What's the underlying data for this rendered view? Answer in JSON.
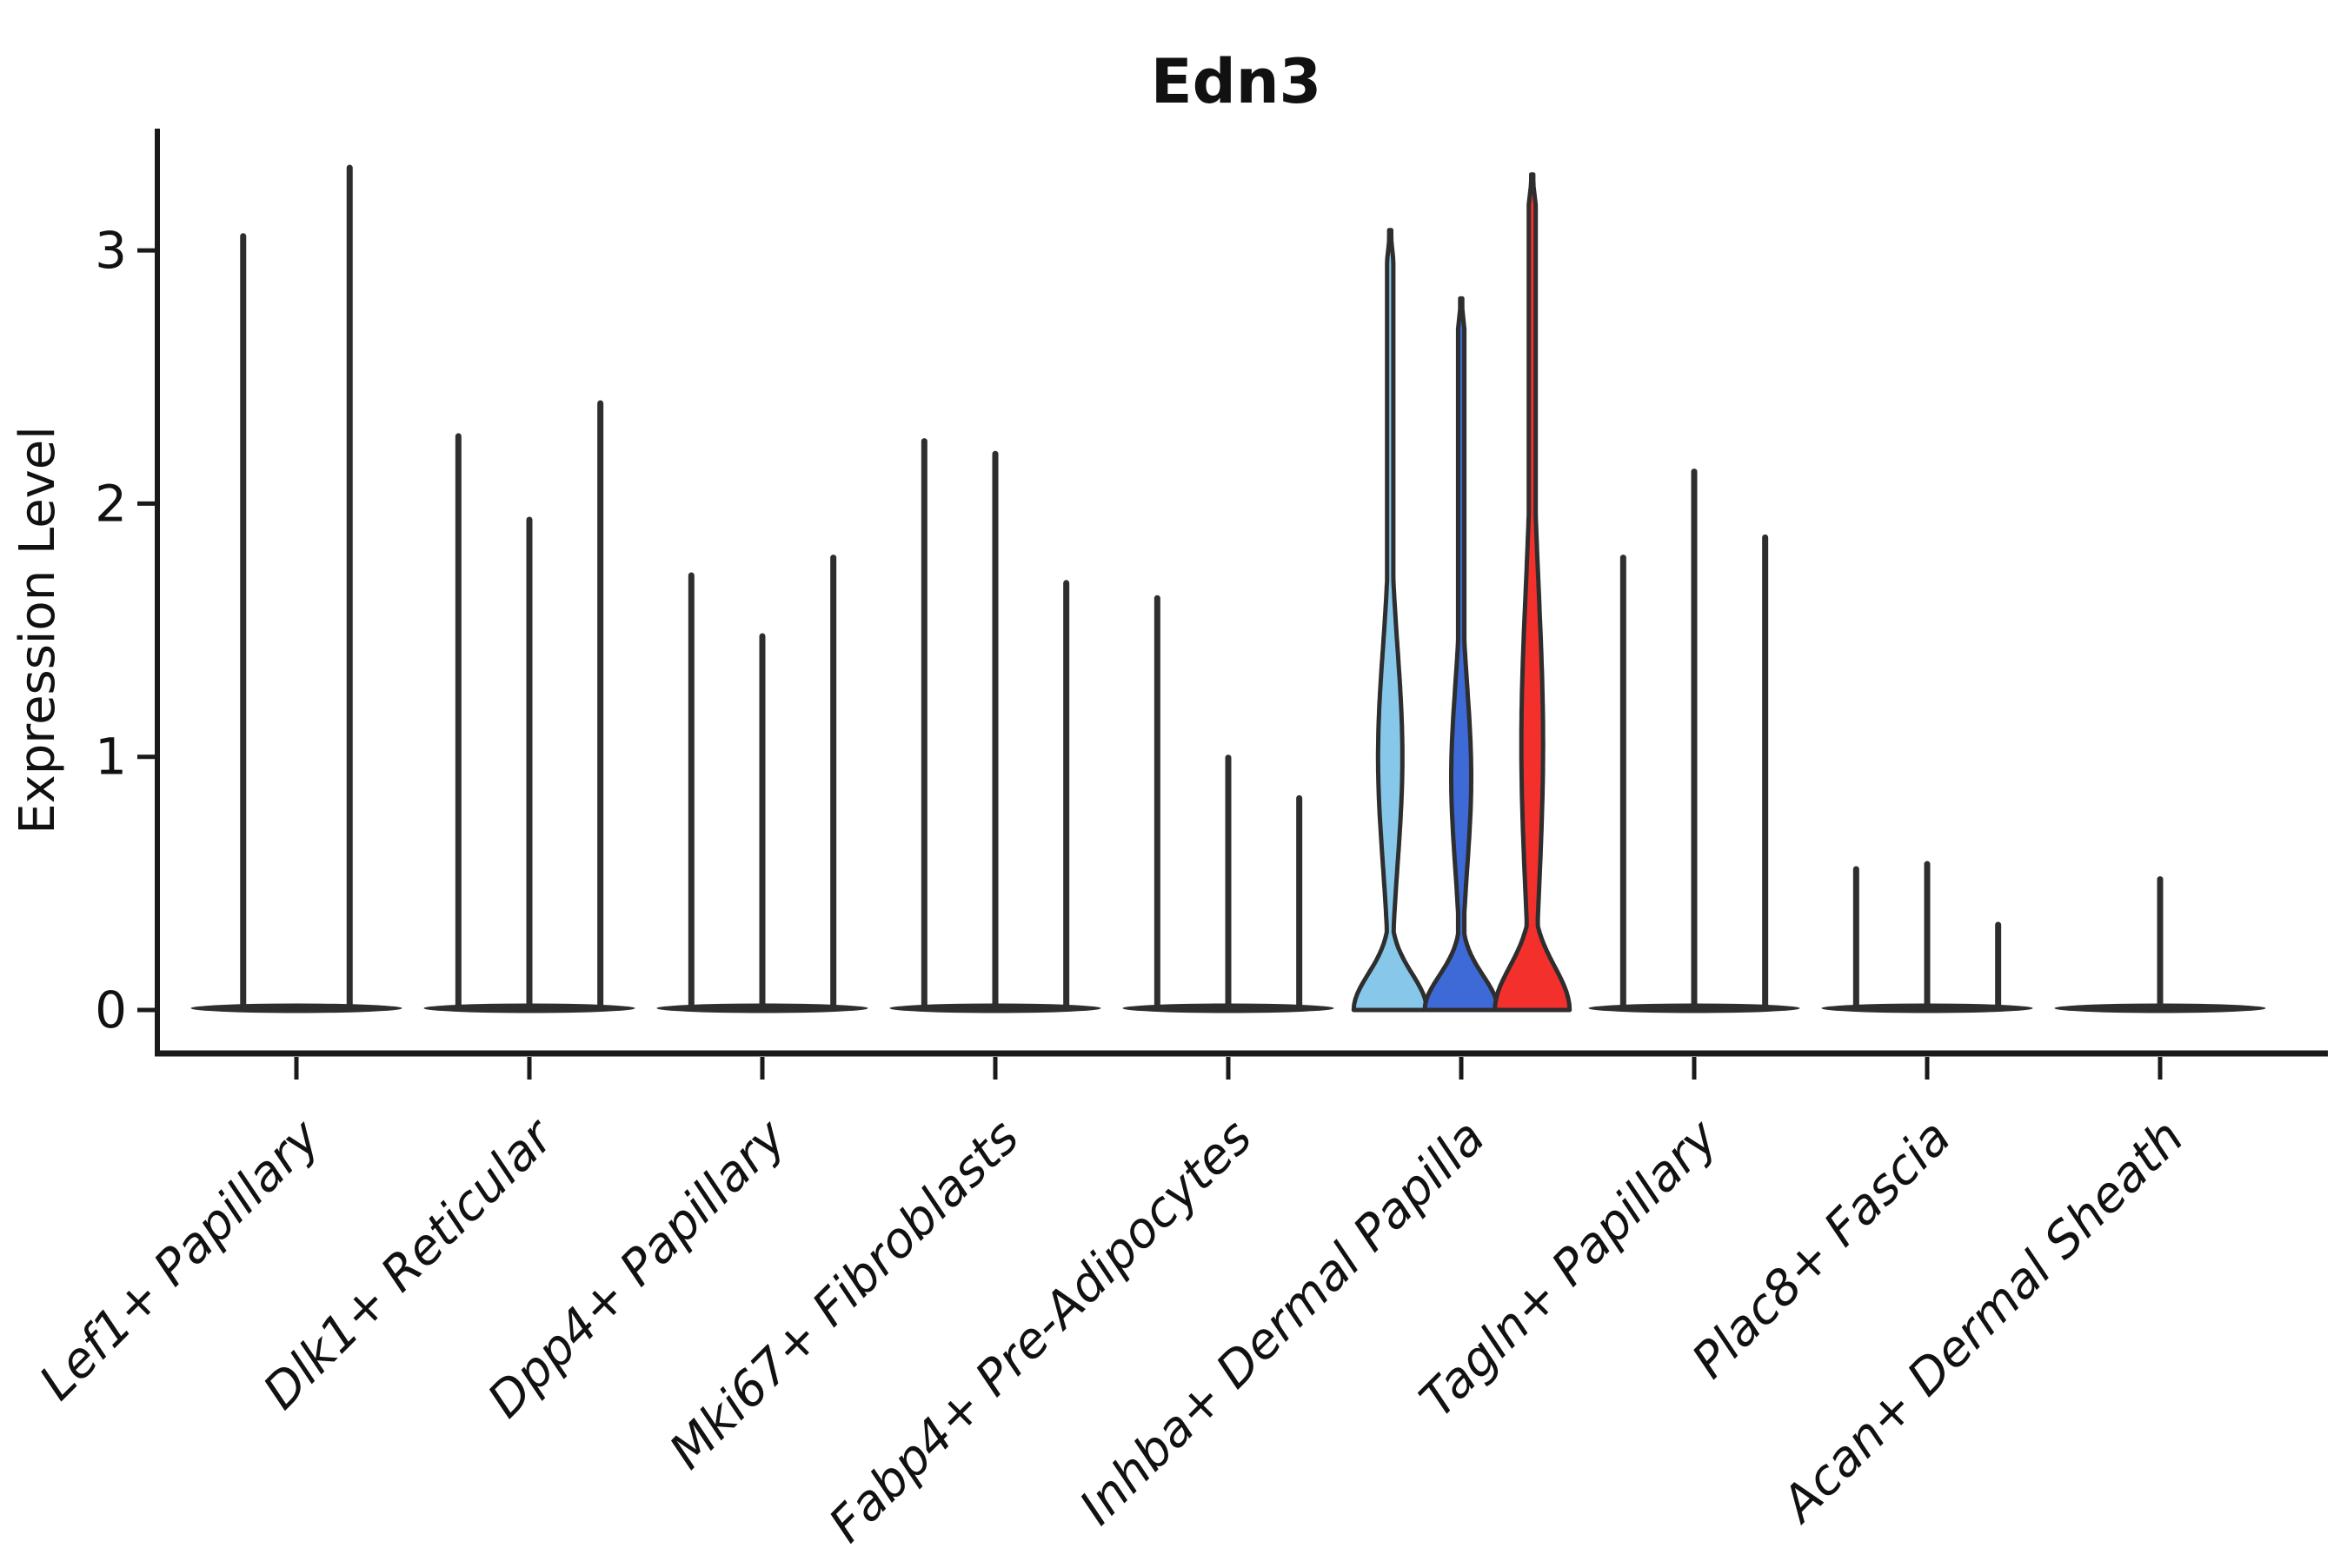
{
  "chart_data": {
    "type": "violin",
    "title": "Edn3",
    "xlabel": "",
    "ylabel": "Expression Level",
    "yticks": [
      0,
      1,
      2,
      3
    ],
    "ylim": [
      -0.17,
      3.47
    ],
    "grid": false,
    "legend": "none",
    "xtick_rotation": 45,
    "xticklabel_style": "italic",
    "outline_color": "#2e2e2e",
    "highlight_colors": [
      "#87C8EA",
      "#3E6AD8",
      "#F3302C"
    ],
    "categories": [
      "Lef1+ Papillary",
      "Dlk1+ Reticular",
      "Dpp4+ Papillary",
      "Mki67+ Fibroblasts",
      "Fabp4+ Pre-Adipocytes",
      "Inhba+ Dermal Papilla",
      "Tagln+ Papillary",
      "Plac8+ Fascia",
      "Acan+ Dermal Sheath"
    ],
    "groups": [
      {
        "category": "Lef1+ Papillary",
        "violins": [
          {
            "max": 3.07
          },
          {
            "max": 3.34
          }
        ]
      },
      {
        "category": "Dlk1+ Reticular",
        "violins": [
          {
            "max": 2.28
          },
          {
            "max": 1.95
          },
          {
            "max": 2.41
          }
        ]
      },
      {
        "category": "Dpp4+ Papillary",
        "violins": [
          {
            "max": 1.73
          },
          {
            "max": 1.49
          },
          {
            "max": 1.8
          }
        ]
      },
      {
        "category": "Mki67+ Fibroblasts",
        "violins": [
          {
            "max": 2.26
          },
          {
            "max": 2.21
          },
          {
            "max": 1.7
          }
        ]
      },
      {
        "category": "Fabp4+ Pre-Adipocytes",
        "violins": [
          {
            "max": 1.64
          },
          {
            "max": 1.01
          },
          {
            "max": 0.85
          }
        ]
      },
      {
        "category": "Inhba+ Dermal Papilla",
        "violins": [
          {
            "max": 3.08,
            "fill": "#87C8EA"
          },
          {
            "max": 2.81,
            "fill": "#3E6AD8"
          },
          {
            "max": 3.3,
            "fill": "#F3302C"
          }
        ]
      },
      {
        "category": "Tagln+ Papillary",
        "violins": [
          {
            "max": 1.8
          },
          {
            "max": 2.14
          },
          {
            "max": 1.88
          }
        ]
      },
      {
        "category": "Plac8+ Fascia",
        "violins": [
          {
            "max": 0.57
          },
          {
            "max": 0.59
          },
          {
            "max": 0.35
          }
        ]
      },
      {
        "category": "Acan+ Dermal Sheath",
        "violins": [
          {
            "max": 0.53
          }
        ]
      }
    ]
  }
}
